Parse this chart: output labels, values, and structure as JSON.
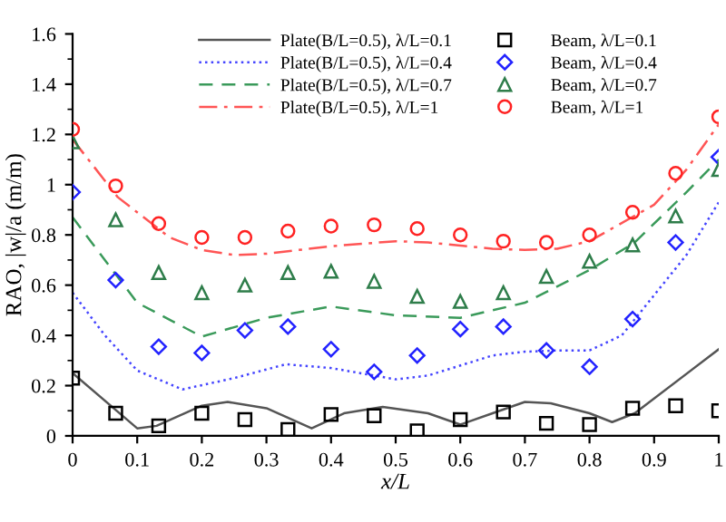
{
  "chart_data": {
    "type": "line",
    "xlabel": "x/L",
    "ylabel": "RAO, |w|/a (m/m)",
    "xlim": [
      0,
      1
    ],
    "ylim": [
      0,
      1.6
    ],
    "xticks": [
      0,
      0.1,
      0.2,
      0.3,
      0.4,
      0.5,
      0.6,
      0.7,
      0.8,
      0.9,
      1
    ],
    "yticks": [
      0,
      0.2,
      0.4,
      0.6,
      0.8,
      1,
      1.2,
      1.4,
      1.6
    ],
    "grid": false,
    "legend": "top",
    "series": [
      {
        "name": "Plate(B/L=0.5), λ/L=0.1",
        "line_style": "solid",
        "color": "#555555",
        "x": [
          0,
          0.1,
          0.13,
          0.2,
          0.24,
          0.3,
          0.37,
          0.42,
          0.48,
          0.55,
          0.6,
          0.65,
          0.7,
          0.74,
          0.8,
          0.835,
          0.87,
          1
        ],
        "values": [
          0.25,
          0.03,
          0.04,
          0.12,
          0.135,
          0.11,
          0.03,
          0.09,
          0.115,
          0.09,
          0.045,
          0.09,
          0.135,
          0.13,
          0.09,
          0.055,
          0.09,
          0.345
        ]
      },
      {
        "name": "Plate(B/L=0.5), λ/L=0.4",
        "line_style": "dotted",
        "color": "#4444ff",
        "x": [
          0,
          0.05,
          0.1,
          0.17,
          0.25,
          0.33,
          0.4,
          0.5,
          0.55,
          0.65,
          0.7,
          0.75,
          0.8,
          0.85,
          0.9,
          0.95,
          1
        ],
        "values": [
          0.57,
          0.4,
          0.26,
          0.185,
          0.23,
          0.285,
          0.27,
          0.225,
          0.24,
          0.32,
          0.335,
          0.34,
          0.34,
          0.4,
          0.56,
          0.72,
          0.93
        ]
      },
      {
        "name": "Plate(B/L=0.5), λ/L=0.7",
        "line_style": "dashed",
        "color": "#3a9a5a",
        "x": [
          0,
          0.05,
          0.1,
          0.2,
          0.3,
          0.4,
          0.5,
          0.6,
          0.7,
          0.8,
          0.87,
          0.95,
          1
        ],
        "values": [
          0.87,
          0.7,
          0.53,
          0.395,
          0.47,
          0.515,
          0.48,
          0.47,
          0.53,
          0.66,
          0.77,
          0.97,
          1.1
        ]
      },
      {
        "name": "Plate(B/L=0.5), λ/L=1",
        "line_style": "dashdot",
        "color": "#ff5555",
        "x": [
          0,
          0.07,
          0.15,
          0.2,
          0.25,
          0.3,
          0.4,
          0.5,
          0.55,
          0.65,
          0.7,
          0.75,
          0.8,
          0.9,
          0.95,
          1
        ],
        "values": [
          1.18,
          0.95,
          0.79,
          0.74,
          0.72,
          0.725,
          0.755,
          0.775,
          0.77,
          0.745,
          0.74,
          0.745,
          0.775,
          0.92,
          1.06,
          1.24
        ]
      },
      {
        "name": "Beam, λ/L=0.1",
        "type": "scatter",
        "marker": "square",
        "color": "#000000",
        "x": [
          0,
          0.0667,
          0.1333,
          0.2,
          0.2667,
          0.3333,
          0.4,
          0.4667,
          0.5333,
          0.6,
          0.6667,
          0.7333,
          0.8,
          0.8667,
          0.9333,
          1
        ],
        "values": [
          0.23,
          0.09,
          0.04,
          0.09,
          0.065,
          0.025,
          0.085,
          0.08,
          0.02,
          0.065,
          0.095,
          0.05,
          0.045,
          0.11,
          0.12,
          0.1
        ]
      },
      {
        "name": "Beam, λ/L=0.4",
        "type": "scatter",
        "marker": "diamond",
        "color": "#2222ff",
        "x": [
          0,
          0.0667,
          0.1333,
          0.2,
          0.2667,
          0.3333,
          0.4,
          0.4667,
          0.5333,
          0.6,
          0.6667,
          0.7333,
          0.8,
          0.8667,
          0.9333,
          1
        ],
        "values": [
          0.97,
          0.62,
          0.355,
          0.33,
          0.42,
          0.435,
          0.345,
          0.255,
          0.32,
          0.425,
          0.435,
          0.34,
          0.275,
          0.465,
          0.77,
          1.11
        ]
      },
      {
        "name": "Beam, λ/L=0.7",
        "type": "scatter",
        "marker": "triangle",
        "color": "#2e7d4a",
        "x": [
          0,
          0.0667,
          0.1333,
          0.2,
          0.2667,
          0.3333,
          0.4,
          0.4667,
          0.5333,
          0.6,
          0.6667,
          0.7333,
          0.8,
          0.8667,
          0.9333,
          1
        ],
        "values": [
          1.17,
          0.86,
          0.65,
          0.57,
          0.6,
          0.65,
          0.655,
          0.615,
          0.555,
          0.535,
          0.57,
          0.635,
          0.695,
          0.76,
          0.875,
          1.06
        ]
      },
      {
        "name": "Beam, λ/L=1",
        "type": "scatter",
        "marker": "circle",
        "color": "#ff2222",
        "x": [
          0,
          0.0667,
          0.1333,
          0.2,
          0.2667,
          0.3333,
          0.4,
          0.4667,
          0.5333,
          0.6,
          0.6667,
          0.7333,
          0.8,
          0.8667,
          0.9333,
          1
        ],
        "values": [
          1.22,
          0.995,
          0.845,
          0.79,
          0.79,
          0.815,
          0.835,
          0.84,
          0.825,
          0.8,
          0.775,
          0.77,
          0.8,
          0.89,
          1.045,
          1.27
        ]
      }
    ]
  }
}
